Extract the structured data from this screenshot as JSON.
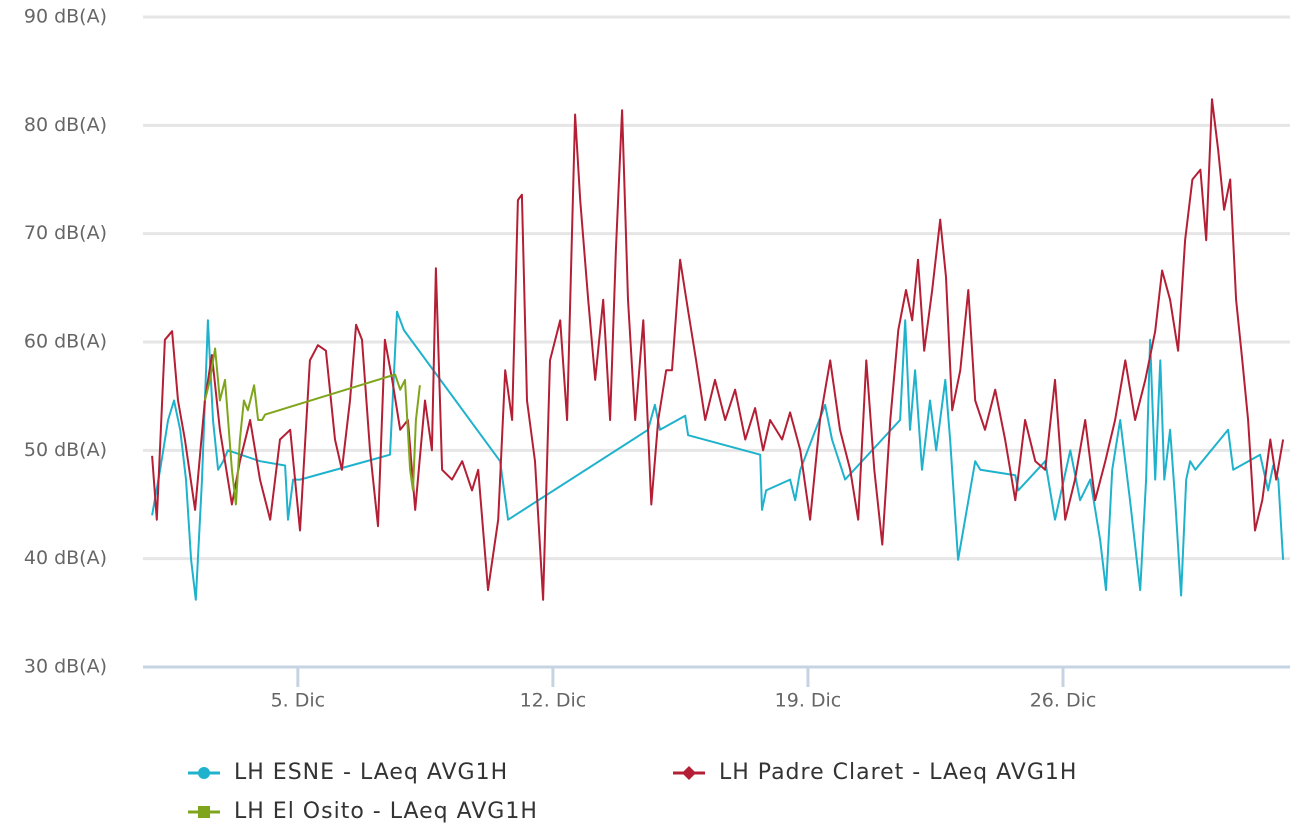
{
  "chart_data": {
    "type": "line",
    "xlim": [
      0.75,
      32.23
    ],
    "xticks": [
      {
        "value": 5,
        "label": "5. Dic"
      },
      {
        "value": 12,
        "label": "12. Dic"
      },
      {
        "value": 19,
        "label": "19. Dic"
      },
      {
        "value": 26,
        "label": "26. Dic"
      }
    ],
    "ylim": [
      30,
      90
    ],
    "yticks": [
      {
        "value": 30,
        "label": "30 dB(A)"
      },
      {
        "value": 40,
        "label": "40 dB(A)"
      },
      {
        "value": 50,
        "label": "50 dB(A)"
      },
      {
        "value": 60,
        "label": "60 dB(A)"
      },
      {
        "value": 70,
        "label": "70 dB(A)"
      },
      {
        "value": 80,
        "label": "80 dB(A)"
      },
      {
        "value": 90,
        "label": "90 dB(A)"
      }
    ],
    "grid": true,
    "series": [
      {
        "name": "LH ESNE - LAeq AVG1H",
        "color": "#1fb2cc",
        "marker": "circle",
        "x": [
          1.0,
          1.22,
          1.44,
          1.6,
          1.77,
          1.93,
          2.07,
          2.2,
          2.37,
          2.53,
          2.67,
          2.81,
          2.95,
          3.08,
          3.96,
          4.65,
          4.73,
          4.87,
          5.06,
          7.53,
          7.72,
          7.91,
          10.55,
          10.77,
          14.61,
          14.8,
          14.94,
          15.63,
          15.71,
          17.69,
          17.74,
          17.85,
          18.51,
          18.65,
          18.79,
          19.47,
          19.66,
          20.02,
          21.53,
          21.67,
          21.8,
          21.94,
          22.13,
          22.35,
          22.52,
          22.77,
          22.9,
          23.12,
          23.59,
          23.73,
          24.69,
          24.77,
          25.51,
          25.78,
          26.2,
          26.47,
          26.75,
          27.02,
          27.18,
          27.35,
          27.57,
          27.84,
          28.12,
          28.28,
          28.39,
          28.53,
          28.67,
          28.78,
          28.94,
          29.08,
          29.24,
          29.38,
          29.49,
          29.63,
          30.53,
          30.67,
          31.41,
          31.63,
          31.77,
          31.91,
          32.04
        ],
        "values": [
          44,
          48.2,
          52.8,
          54.6,
          51.9,
          47.3,
          39.9,
          36.2,
          47.3,
          62,
          52.8,
          48.2,
          49,
          50,
          49,
          48.6,
          43.6,
          47.3,
          47.3,
          49.6,
          62.8,
          61.1,
          49,
          43.6,
          51.9,
          54.2,
          51.9,
          53.2,
          51.4,
          49.6,
          44.5,
          46.3,
          47.3,
          45.4,
          48.2,
          54.2,
          51,
          47.3,
          52.8,
          62,
          51.9,
          57.4,
          48.2,
          54.6,
          50,
          56.5,
          51,
          39.9,
          49,
          48.2,
          47.7,
          46.3,
          49,
          43.6,
          50,
          45.4,
          47.3,
          41.7,
          37.1,
          48.2,
          52.8,
          45.4,
          37.1,
          47.3,
          60.2,
          47.3,
          58.3,
          47.3,
          51.9,
          45.4,
          36.6,
          47.3,
          49,
          48.2,
          51.9,
          48.2,
          49.6,
          46.3,
          48.6,
          47.3,
          39.9
        ]
      },
      {
        "name": "LH Padre Claret - LAeq AVG1H",
        "color": "#b41f35",
        "marker": "diamond",
        "x": [
          1.0,
          1.13,
          1.35,
          1.55,
          1.71,
          1.9,
          2.18,
          2.45,
          2.64,
          2.86,
          3.19,
          3.41,
          3.69,
          3.96,
          4.24,
          4.51,
          4.79,
          5.06,
          5.33,
          5.55,
          5.77,
          6.02,
          6.21,
          6.43,
          6.6,
          6.76,
          6.98,
          7.2,
          7.39,
          7.59,
          7.81,
          8.02,
          8.22,
          8.49,
          8.68,
          8.79,
          8.96,
          9.23,
          9.51,
          9.78,
          9.95,
          10.22,
          10.5,
          10.69,
          10.88,
          11.04,
          11.15,
          11.29,
          11.51,
          11.73,
          11.92,
          12.2,
          12.39,
          12.61,
          12.75,
          12.97,
          13.16,
          13.38,
          13.57,
          13.73,
          13.9,
          14.06,
          14.26,
          14.48,
          14.7,
          14.89,
          15.11,
          15.27,
          15.49,
          15.71,
          15.93,
          16.18,
          16.45,
          16.73,
          17.0,
          17.28,
          17.55,
          17.77,
          17.96,
          18.29,
          18.51,
          18.79,
          19.06,
          19.33,
          19.61,
          19.88,
          20.16,
          20.38,
          20.6,
          20.82,
          21.04,
          21.26,
          21.48,
          21.69,
          21.86,
          22.02,
          22.19,
          22.41,
          22.63,
          22.79,
          22.96,
          23.18,
          23.4,
          23.59,
          23.86,
          24.14,
          24.41,
          24.69,
          24.96,
          25.24,
          25.51,
          25.78,
          26.06,
          26.33,
          26.61,
          26.88,
          27.16,
          27.43,
          27.71,
          27.98,
          28.26,
          28.53,
          28.72,
          28.94,
          29.16,
          29.35,
          29.55,
          29.77,
          29.93,
          30.09,
          30.26,
          30.42,
          30.59,
          30.75,
          30.92,
          31.08,
          31.27,
          31.47,
          31.69,
          31.85,
          32.04
        ],
        "values": [
          49.5,
          43.6,
          60.2,
          61,
          54.6,
          51,
          44.5,
          54.6,
          58.8,
          51.9,
          45,
          49,
          52.8,
          47.3,
          43.6,
          51,
          51.9,
          42.6,
          58.3,
          59.7,
          59.2,
          51,
          48.2,
          54.6,
          61.6,
          60.2,
          50,
          43,
          60.2,
          56.5,
          51.9,
          52.8,
          44.5,
          54.6,
          50,
          66.8,
          48.2,
          47.3,
          49,
          46.3,
          48.2,
          37.1,
          43.6,
          57.4,
          52.8,
          73.1,
          73.6,
          54.6,
          49,
          36.2,
          58.3,
          62,
          52.8,
          81,
          73.1,
          63.9,
          56.5,
          63.9,
          52.8,
          68.5,
          81.4,
          63.9,
          52.8,
          62,
          45,
          52.8,
          57.4,
          57.4,
          67.6,
          62.9,
          58.3,
          52.8,
          56.5,
          52.8,
          55.6,
          51,
          53.9,
          50,
          52.8,
          51,
          53.5,
          50,
          43.6,
          52.8,
          58.3,
          51.9,
          48.2,
          43.6,
          58.3,
          48.2,
          41.3,
          52.8,
          61.1,
          64.8,
          62,
          67.6,
          59.2,
          64.8,
          71.3,
          66,
          53.7,
          57.4,
          64.8,
          54.6,
          51.9,
          55.6,
          51,
          45.4,
          52.8,
          49,
          48.2,
          56.5,
          43.6,
          47.3,
          52.8,
          45.4,
          49,
          52.8,
          58.3,
          52.8,
          56.5,
          61,
          66.6,
          63.9,
          59.2,
          69.4,
          75,
          75.9,
          69.4,
          82.4,
          77.7,
          72.2,
          75,
          63.9,
          58.3,
          52.8,
          42.6,
          45.4,
          51,
          47.3,
          51
        ]
      },
      {
        "name": "LH El Osito - LAeq AVG1H",
        "color": "#7fa51c",
        "marker": "square",
        "x": [
          2.45,
          2.59,
          2.73,
          2.86,
          3.0,
          3.19,
          3.3,
          3.41,
          3.52,
          3.63,
          3.8,
          3.91,
          4.02,
          4.1,
          7.67,
          7.81,
          7.94,
          8.08,
          8.16,
          8.24,
          8.35
        ],
        "values": [
          54.6,
          56.5,
          59.4,
          54.6,
          56.5,
          48.2,
          45,
          51,
          54.6,
          53.7,
          56,
          52.8,
          52.8,
          53.3,
          57,
          55.6,
          56.5,
          48.2,
          46.3,
          52.8,
          56
        ]
      }
    ]
  }
}
